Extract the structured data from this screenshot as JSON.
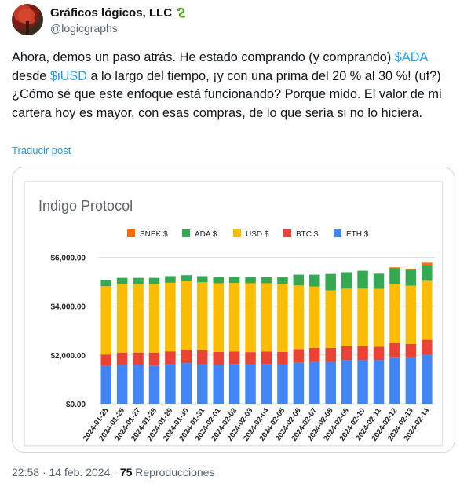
{
  "author": {
    "name": "Gráficos lógicos, LLC",
    "handle": "@logicgraphs"
  },
  "tweet": {
    "part1": "Ahora, demos un paso atrás. He estado comprando (y comprando) ",
    "tag1": "$ADA",
    "part2": " desde ",
    "tag2": "$iUSD",
    "part3": " a lo largo del tiempo, ¡y con una prima del 20 % al 30 %! (uf?) ¿Cómo sé que este enfoque está funcionando? Porque mido. El valor de mi cartera hoy es mayor, con esas compras, de lo que sería si no lo hiciera.",
    "translate_label": "Traducir post"
  },
  "meta": {
    "time": "22:58",
    "date": "14 feb. 2024",
    "views_count": "75",
    "views_label": "Reproducciones"
  },
  "colors": {
    "ETH $": "#4285f4",
    "BTC $": "#ea4335",
    "USD $": "#fbbc04",
    "ADA $": "#34a853",
    "SNEK $": "#ff6d01"
  },
  "chart_data": {
    "type": "bar",
    "stacked": true,
    "title": "Indigo Protocol",
    "legend_position": "top",
    "ylim": [
      0,
      6500
    ],
    "yticks": [
      0,
      2000,
      4000,
      6000
    ],
    "ytick_labels": [
      "$0.00",
      "$2,000.00",
      "$4,000.00",
      "$6,000.00"
    ],
    "grid": true,
    "categories": [
      "2024-01-25",
      "2024-01-26",
      "2024-01-27",
      "2024-01-28",
      "2024-01-29",
      "2024-01-30",
      "2024-01-31",
      "2024-02-01",
      "2024-02-02",
      "2024-02-03",
      "2024-02-04",
      "2024-02-05",
      "2024-02-06",
      "2024-02-07",
      "2024-02-08",
      "2024-02-09",
      "2024-02-10",
      "2024-02-11",
      "2024-02-12",
      "2024-02-13",
      "2024-02-14"
    ],
    "series": [
      {
        "name": "ETH $",
        "values": [
          1550,
          1600,
          1600,
          1570,
          1640,
          1670,
          1640,
          1600,
          1620,
          1640,
          1620,
          1610,
          1680,
          1720,
          1720,
          1790,
          1790,
          1790,
          1890,
          1880,
          2000
        ]
      },
      {
        "name": "BTC $",
        "values": [
          470,
          500,
          500,
          530,
          510,
          550,
          550,
          530,
          520,
          480,
          520,
          520,
          560,
          570,
          570,
          560,
          570,
          550,
          610,
          570,
          620
        ]
      },
      {
        "name": "USD $",
        "values": [
          2800,
          2820,
          2810,
          2820,
          2810,
          2800,
          2790,
          2810,
          2810,
          2820,
          2800,
          2790,
          2610,
          2520,
          2360,
          2370,
          2360,
          2370,
          2400,
          2390,
          2420
        ]
      },
      {
        "name": "ADA $",
        "values": [
          250,
          240,
          250,
          240,
          270,
          250,
          250,
          250,
          250,
          250,
          240,
          260,
          440,
          480,
          670,
          670,
          730,
          620,
          650,
          650,
          640
        ]
      },
      {
        "name": "SNEK $",
        "values": [
          0,
          0,
          0,
          0,
          0,
          0,
          0,
          0,
          0,
          0,
          0,
          0,
          0,
          0,
          0,
          0,
          0,
          0,
          40,
          40,
          100
        ]
      }
    ],
    "legend_order": [
      "SNEK $",
      "ADA $",
      "USD $",
      "BTC $",
      "ETH $"
    ]
  }
}
